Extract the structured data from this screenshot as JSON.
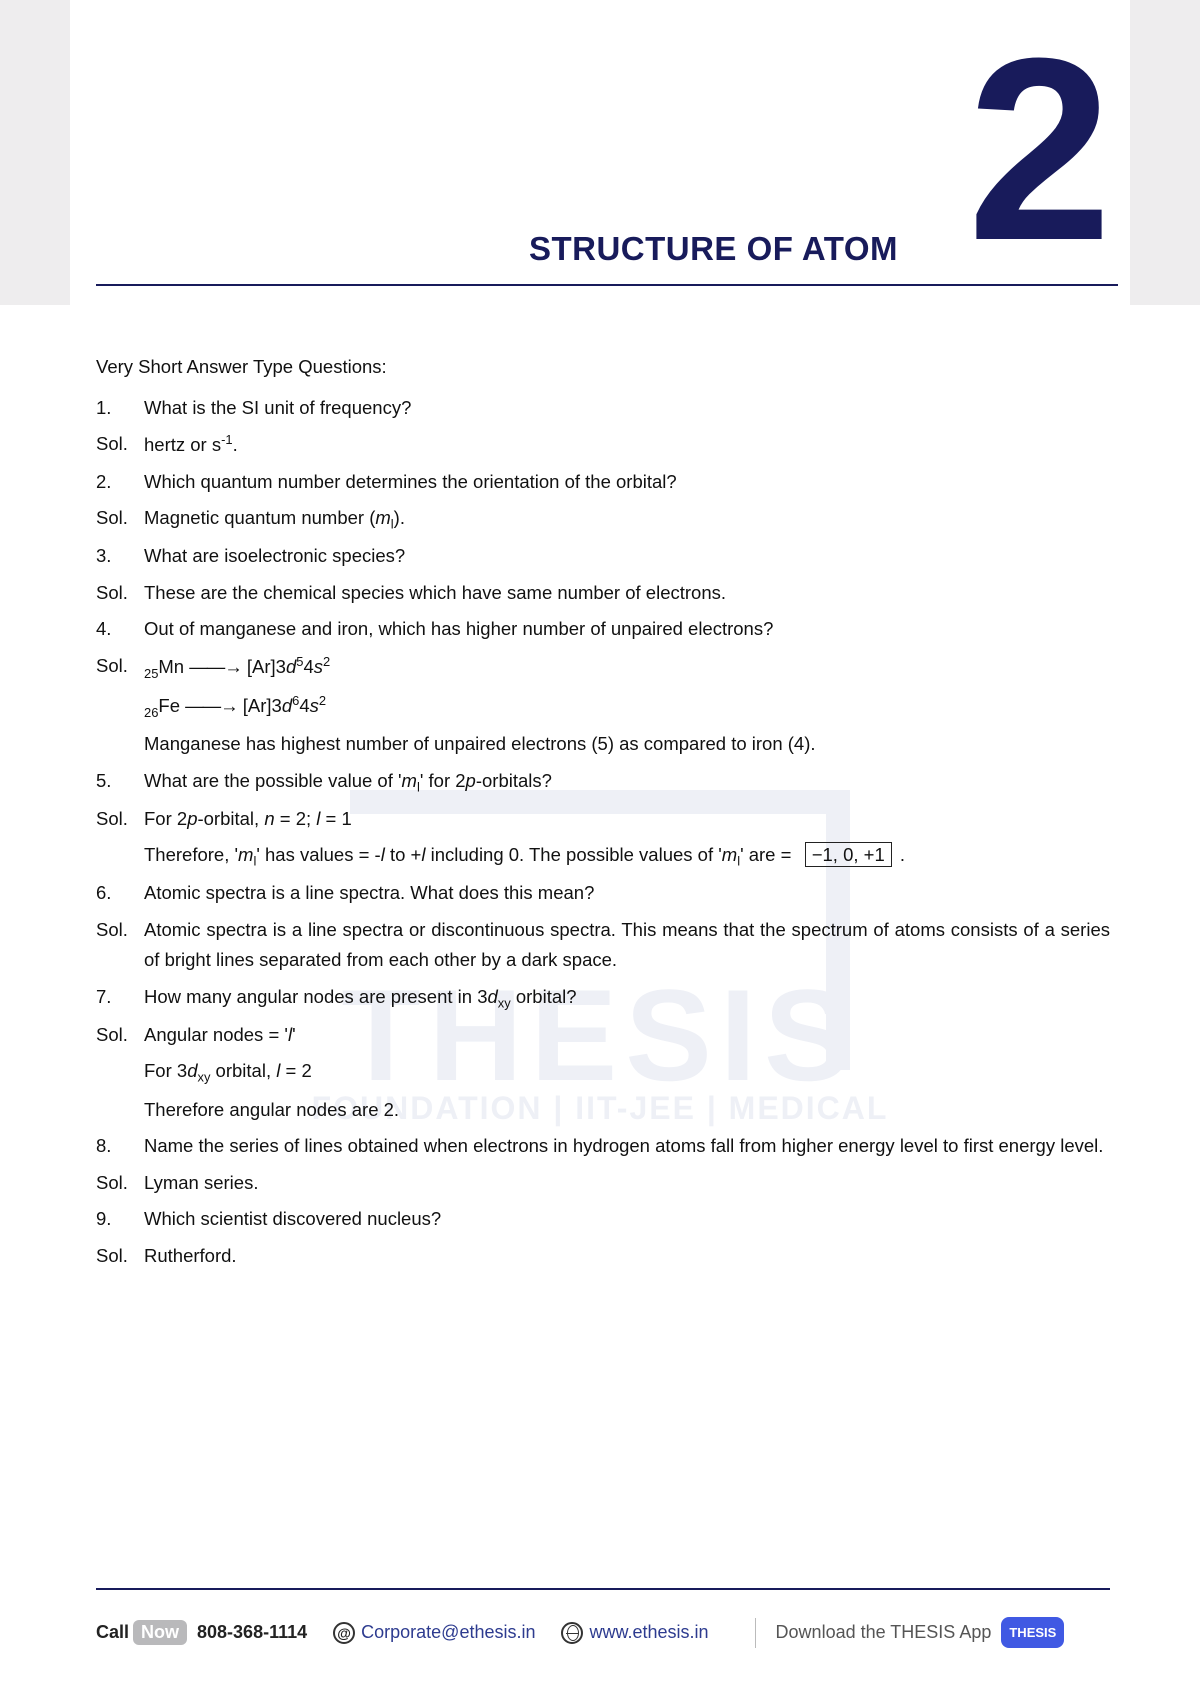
{
  "header": {
    "brand_vertical": "THESIS",
    "chapter_number": "2",
    "chapter_title": "STRUCTURE OF ATOM"
  },
  "section_heading": "Very Short Answer Type Questions:",
  "qa": [
    {
      "n": "1.",
      "q": "What is the SI unit of frequency?",
      "sol_label": "Sol.",
      "sol_html": "hertz or s<sup>-1</sup>."
    },
    {
      "n": "2.",
      "q": "Which quantum number determines the orientation of the orbital?",
      "sol_label": "Sol.",
      "sol_html": "Magnetic quantum number (<span class='ital'>m</span><sub>l</sub>)."
    },
    {
      "n": "3.",
      "q": "What are isoelectronic species?",
      "sol_label": "Sol.",
      "sol_html": "These are the chemical species which have same number of electrons."
    },
    {
      "n": "4.",
      "q": "Out of manganese and iron, which has higher number of unpaired electrons?",
      "sol_label": "Sol.",
      "sol_html": "<sub>25</sub>Mn <span class='arrow'>——→</span> [Ar]3<span class='ital'>d</span><sup>5</sup>4<span class='ital'>s</span><sup>2</sup>",
      "extra": [
        "<sub>26</sub>Fe <span class='arrow'>——→</span> [Ar]3<span class='ital'>d</span><sup>6</sup>4<span class='ital'>s</span><sup>2</sup>",
        "Manganese has highest number of unpaired electrons (5) as compared to iron (4)."
      ]
    },
    {
      "n": "5.",
      "q_html": "What are the possible value of '<span class='ital'>m</span><sub>l</sub>' for 2<span class='ital'>p</span>-orbitals?",
      "sol_label": "Sol.",
      "sol_html": "For 2<span class='ital'>p</span>-orbital, <span class='ital'>n</span> = 2; <span class='ital'>l</span> = 1",
      "extra": [
        "Therefore, '<span class='ital'>m</span><sub>l</sub>' has values = -<span class='ital'>l</span> to +<span class='ital'>l</span> including 0. The possible values of '<span class='ital'>m</span><sub>l</sub>' are = &nbsp;<span class='boxed'>−1, 0, +1</span> ."
      ]
    },
    {
      "n": "6.",
      "q": "Atomic spectra is a line spectra. What does this mean?",
      "sol_label": "Sol.",
      "sol_html": "Atomic spectra is a line spectra or discontinuous spectra. This means that the spectrum of atoms consists of a series of bright lines separated from each other by a dark space."
    },
    {
      "n": "7.",
      "q_html": "How many angular nodes are present in 3<span class='ital'>d</span><sub>xy</sub> orbital?",
      "sol_label": "Sol.",
      "sol_html": "Angular nodes = '<span class='ital'>l</span>'",
      "extra": [
        "For 3<span class='ital'>d</span><sub>xy</sub> orbital, <span class='ital'>l</span> = 2",
        "Therefore angular nodes are 2."
      ]
    },
    {
      "n": "8.",
      "q": "Name the series of lines obtained when electrons in hydrogen atoms fall from higher energy level to first energy level.",
      "sol_label": "Sol.",
      "sol_html": "Lyman series."
    },
    {
      "n": "9.",
      "q": "Which scientist discovered nucleus?",
      "sol_label": "Sol.",
      "sol_html": "Rutherford."
    }
  ],
  "watermark": {
    "big": "THESIS",
    "small": "FOUNDATION | IIT-JEE  | MEDICAL"
  },
  "footer": {
    "call_label": "Call",
    "now_label": "Now",
    "phone": "808-368-1114",
    "email": "Corporate@ethesis.in",
    "website": "www.ethesis.in",
    "download_label": "Download the THESIS App",
    "app_badge": "THESIS"
  },
  "colors": {
    "brand": "#181b5b",
    "side_bg": "#eeedee",
    "watermark": "#eef0f6",
    "app_badge": "#4059e3",
    "link": "#2d3b8f"
  }
}
